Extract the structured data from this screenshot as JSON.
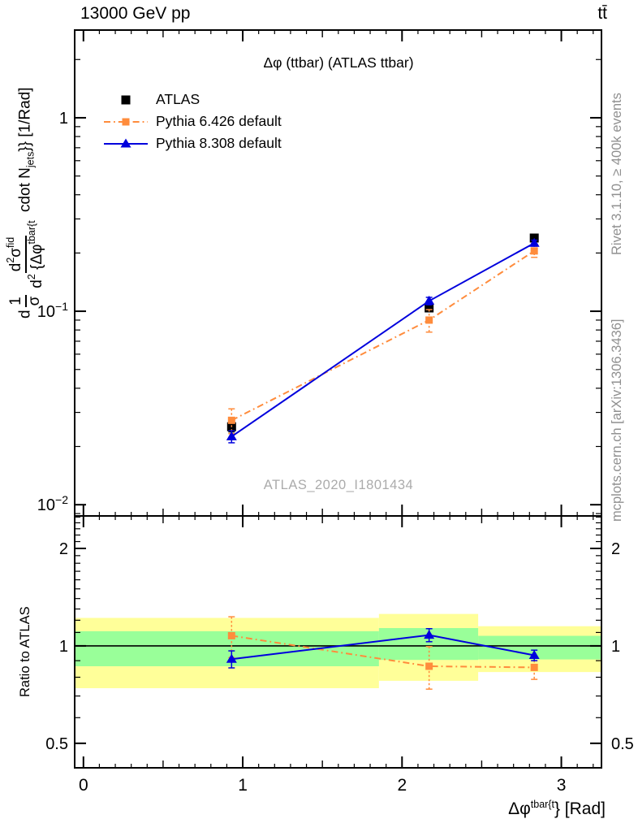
{
  "header": {
    "left": "13000 GeV pp",
    "right": "tt̄"
  },
  "captions": {
    "rivet": "Rivet 3.1.10, ≥ 400k events",
    "mcplots": "mcplots.cern.ch [arXiv:1306.3436]"
  },
  "chart_data": {
    "type": "line",
    "title": "Δφ (ttbar) (ATLAS ttbar)",
    "watermark": "ATLAS_2020_I1801434",
    "colors": {
      "band_yellow": "#ffff99",
      "band_green": "#99ff99"
    },
    "x_axis": {
      "min": -0.055,
      "max": 3.252,
      "major_ticks": [
        0,
        1,
        2,
        3
      ],
      "minor_step": 0.1,
      "label_parts": [
        {
          "type": "text",
          "text": "Δφ"
        },
        {
          "type": "sup",
          "text": "tbar{t"
        },
        {
          "type": "text",
          "text": "} [Rad]"
        }
      ]
    },
    "y_axis_main": {
      "scale": "log",
      "min": 0.00875,
      "max": 2.84,
      "major_ticks": [
        {
          "value": 1,
          "base": "1",
          "exp": ""
        },
        {
          "value": 0.1,
          "base": "10",
          "exp": "−1"
        },
        {
          "value": 0.01,
          "base": "10",
          "exp": "−2"
        }
      ],
      "label_parts": [
        {
          "type": "text",
          "text": "d"
        },
        {
          "type": "frac",
          "num": [
            {
              "type": "text",
              "text": "1"
            }
          ],
          "den": [
            {
              "type": "text",
              "text": "σ"
            }
          ]
        },
        {
          "type": "frac",
          "num": [
            {
              "type": "text",
              "text": "d"
            },
            {
              "type": "sup",
              "text": "2"
            },
            {
              "type": "text",
              "text": "σ"
            },
            {
              "type": "sup",
              "text": "fid"
            }
          ],
          "den": [
            {
              "type": "text",
              "text": "d"
            },
            {
              "type": "sup",
              "text": "2"
            },
            {
              "type": "text",
              "text": " {Δφ"
            },
            {
              "type": "sup",
              "text": "tbar{t"
            }
          ]
        },
        {
          "type": "text",
          "text": " cdot N"
        },
        {
          "type": "sub",
          "text": "jets"
        },
        {
          "type": "text",
          "text": "}} [1/Rad]"
        }
      ]
    },
    "y_axis_ratio": {
      "scale": "log",
      "min": 0.42,
      "max": 2.52,
      "label": "Ratio to ATLAS",
      "major_ticks": [
        {
          "value": 2,
          "label": "2"
        },
        {
          "value": 1,
          "label": "1"
        },
        {
          "value": 0.5,
          "label": "0.5"
        }
      ]
    },
    "x": [
      0.93,
      2.17,
      2.83
    ],
    "series": [
      {
        "name": "ATLAS",
        "color": "#000000",
        "marker": "square",
        "marker_size": 11,
        "line": "none",
        "values": [
          0.0253,
          0.104,
          0.239
        ],
        "yerr": [
          0.0015,
          0.004,
          0.009
        ]
      },
      {
        "name": "Pythia 6.426 default",
        "color": "#ff8c3c",
        "marker": "square",
        "marker_size": 9,
        "line": "dashdot",
        "values": [
          0.0273,
          0.09,
          0.205
        ],
        "yerr": [
          0.004,
          0.012,
          0.015
        ],
        "ratio": [
          1.075,
          0.865,
          0.858
        ],
        "ratio_err": [
          0.155,
          0.13,
          0.07
        ]
      },
      {
        "name": "Pythia 8.308 default",
        "color": "#0000dd",
        "marker": "triangle",
        "marker_size": 11,
        "line": "solid",
        "values": [
          0.0225,
          0.113,
          0.225
        ],
        "yerr": [
          0.0016,
          0.005,
          0.008
        ],
        "ratio": [
          0.91,
          1.08,
          0.935
        ],
        "ratio_err": [
          0.055,
          0.05,
          0.035
        ]
      }
    ],
    "ratio_reference": 1,
    "ratio_bands": [
      {
        "x_range": [
          -0.055,
          1.855
        ],
        "yellow": [
          0.74,
          1.22
        ],
        "green": [
          0.865,
          1.11
        ]
      },
      {
        "x_range": [
          1.855,
          2.478
        ],
        "yellow": [
          0.78,
          1.255
        ],
        "green": [
          0.905,
          1.135
        ]
      },
      {
        "x_range": [
          2.478,
          3.252
        ],
        "yellow": [
          0.83,
          1.15
        ],
        "green": [
          0.908,
          1.074
        ]
      }
    ]
  }
}
